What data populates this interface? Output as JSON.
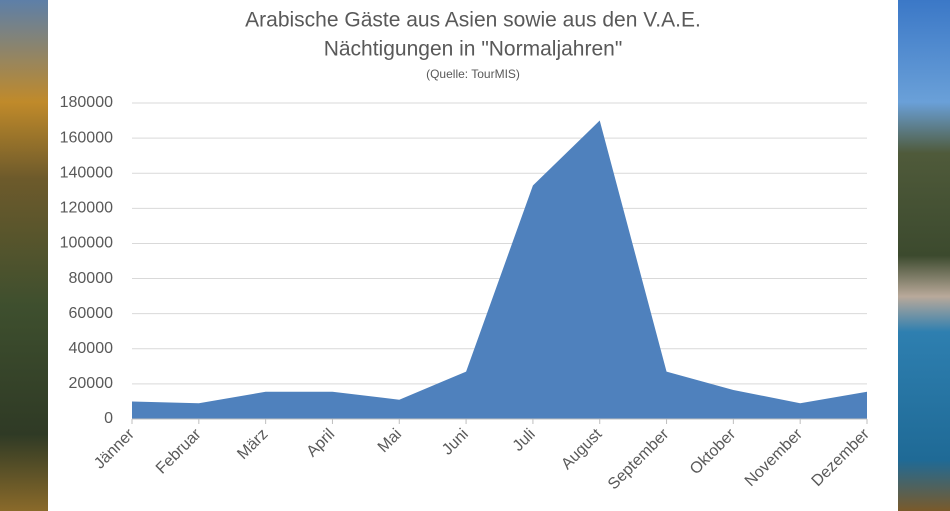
{
  "chart_data": {
    "type": "area",
    "title": [
      "Arabische Gäste aus Asien sowie aus den V.A.E.",
      "Nächtigungen in \"Normaljahren\""
    ],
    "subtitle": "(Quelle: TourMIS)",
    "categories": [
      "Jänner",
      "Februar",
      "März",
      "April",
      "Mai",
      "Juni",
      "Juli",
      "August",
      "September",
      "Oktober",
      "November",
      "Dezember"
    ],
    "values": [
      10000,
      9000,
      15500,
      15500,
      11000,
      27000,
      133000,
      170000,
      27000,
      16500,
      9000,
      15500
    ],
    "color": "#4f81bd",
    "ylim": [
      0,
      180000
    ],
    "yticks": [
      0,
      20000,
      40000,
      60000,
      80000,
      100000,
      120000,
      140000,
      160000,
      180000
    ],
    "grid": true
  }
}
